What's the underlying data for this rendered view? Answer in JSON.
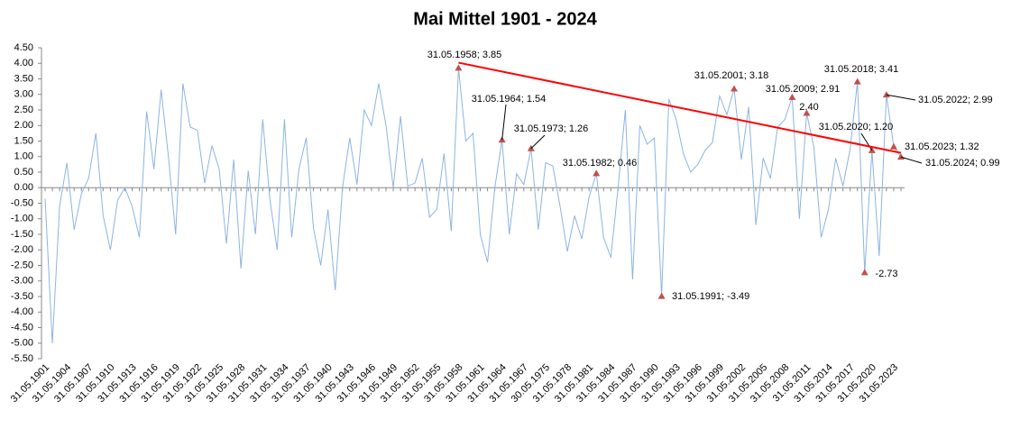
{
  "chart_data": {
    "type": "line",
    "title": "Mai Mittel 1901 - 2024",
    "categories": [
      "31.05.1901",
      null,
      null,
      "31.05.1904",
      null,
      null,
      "31.05.1907",
      null,
      null,
      "31.05.1910",
      null,
      null,
      "31.05.1913",
      null,
      null,
      "31.05.1916",
      null,
      null,
      "31.05.1919",
      null,
      null,
      "31.05.1922",
      null,
      null,
      "31.05.1925",
      null,
      null,
      "31.05.1928",
      null,
      null,
      "31.05.1931",
      null,
      null,
      "31.05.1934",
      null,
      null,
      "31.05.1937",
      null,
      null,
      "31.05.1940",
      null,
      null,
      "31.05.1943",
      null,
      null,
      "31.05.1946",
      null,
      null,
      "31.05.1949",
      null,
      null,
      "31.05.1952",
      null,
      null,
      "31.05.1955",
      null,
      null,
      "31.05.1958",
      null,
      null,
      "31.05.1961",
      null,
      null,
      "31.05.1964",
      null,
      null,
      "31.05.1967",
      null,
      null,
      "30.05.1975",
      null,
      null,
      "31.05.1978",
      null,
      null,
      "31.05.1981",
      null,
      null,
      "31.05.1984",
      null,
      null,
      "31.05.1987",
      null,
      null,
      "31.05.1990",
      null,
      null,
      "31.05.1993",
      null,
      null,
      "31.05.1996",
      null,
      null,
      "31.05.1999",
      null,
      null,
      "31.05.2002",
      null,
      null,
      "31.05.2005",
      null,
      null,
      "31.05.2008",
      null,
      null,
      "31.05.2011",
      null,
      null,
      "31.05.2014",
      null,
      null,
      "31.05.2017",
      null,
      null,
      "31.05.2020",
      null,
      null,
      "31.05.2023",
      null
    ],
    "series": [
      {
        "color": "#8db4e2",
        "marker_color": "#c0504d",
        "values": [
          -0.35,
          -5.0,
          -0.6,
          0.8,
          -1.35,
          -0.2,
          0.3,
          1.75,
          -0.9,
          -2.0,
          -0.4,
          0.0,
          -0.6,
          -1.6,
          2.45,
          0.6,
          3.15,
          1.0,
          -1.5,
          3.35,
          1.95,
          1.85,
          0.15,
          1.35,
          0.6,
          -1.8,
          0.9,
          -2.6,
          0.55,
          -1.5,
          2.2,
          -0.4,
          -2.0,
          2.2,
          -1.6,
          0.6,
          1.6,
          -1.3,
          -2.5,
          -0.7,
          -3.3,
          0.0,
          1.6,
          0.1,
          2.5,
          2.0,
          3.35,
          2.0,
          0.0,
          2.3,
          0.05,
          0.15,
          0.95,
          -0.95,
          -0.7,
          1.1,
          -1.4,
          3.85,
          1.5,
          1.75,
          -1.5,
          -2.4,
          0.0,
          1.54,
          -1.5,
          0.45,
          0.1,
          1.26,
          -1.35,
          0.8,
          0.7,
          -0.6,
          -2.05,
          -0.9,
          -1.65,
          -0.3,
          0.46,
          -1.6,
          -2.25,
          0.0,
          2.5,
          -2.95,
          2.0,
          1.4,
          1.6,
          -3.49,
          2.85,
          2.2,
          1.1,
          0.5,
          0.75,
          1.2,
          1.45,
          2.95,
          2.35,
          3.18,
          0.9,
          2.6,
          -1.2,
          0.95,
          0.3,
          1.95,
          2.2,
          2.91,
          -1.0,
          2.4,
          1.3,
          -1.6,
          -0.7,
          0.95,
          0.05,
          1.25,
          3.41,
          -2.73,
          1.2,
          -2.2,
          2.99,
          1.32,
          0.99
        ],
        "value_labels": [
          null,
          null,
          null,
          null,
          null,
          null,
          null,
          null,
          null,
          null,
          null,
          null,
          null,
          null,
          null,
          null,
          null,
          null,
          null,
          null,
          null,
          null,
          null,
          null,
          null,
          null,
          null,
          null,
          null,
          null,
          null,
          null,
          null,
          null,
          null,
          null,
          null,
          null,
          null,
          null,
          null,
          null,
          null,
          null,
          null,
          null,
          null,
          null,
          null,
          null,
          null,
          null,
          null,
          null,
          null,
          null,
          null,
          "31.05.1958; 3.85",
          null,
          null,
          null,
          null,
          null,
          "31.05.1964; 1.54",
          null,
          null,
          null,
          "31.05.1973; 1.26",
          null,
          null,
          null,
          null,
          null,
          null,
          null,
          null,
          "31.05.1982; 0.46",
          null,
          null,
          null,
          null,
          null,
          null,
          null,
          null,
          "31.05.1991; -3.49",
          null,
          null,
          null,
          null,
          null,
          null,
          null,
          null,
          null,
          "31.05.2001; 3.18",
          null,
          null,
          null,
          null,
          null,
          null,
          null,
          "31.05.2009; 2.91",
          null,
          "2.40",
          null,
          null,
          null,
          null,
          null,
          null,
          "31.05.2018; 3.41",
          "-2.73",
          "31.05.2020; 1.20",
          null,
          "31.05.2022; 2.99",
          "31.05.2023; 1.32",
          "31.05.2024; 0.99"
        ]
      },
      {
        "color": "#ff0000",
        "trend": true,
        "values": [
          null,
          null,
          null,
          null,
          null,
          null,
          null,
          null,
          null,
          null,
          null,
          null,
          null,
          null,
          null,
          null,
          null,
          null,
          null,
          null,
          null,
          null,
          null,
          null,
          null,
          null,
          null,
          null,
          null,
          null,
          null,
          null,
          null,
          null,
          null,
          null,
          null,
          null,
          null,
          null,
          null,
          null,
          null,
          null,
          null,
          null,
          null,
          null,
          null,
          null,
          null,
          null,
          null,
          null,
          null,
          null,
          null,
          4.02,
          null,
          null,
          null,
          null,
          null,
          null,
          null,
          null,
          null,
          null,
          null,
          null,
          null,
          null,
          null,
          null,
          null,
          null,
          null,
          null,
          null,
          null,
          null,
          null,
          null,
          null,
          null,
          null,
          null,
          null,
          null,
          null,
          null,
          null,
          null,
          null,
          null,
          null,
          null,
          null,
          null,
          null,
          null,
          null,
          null,
          null,
          null,
          null,
          null,
          null,
          null,
          null,
          null,
          null,
          null,
          null,
          null,
          null,
          null,
          null,
          1.12
        ]
      }
    ],
    "ylim": [
      -5.5,
      4.5
    ],
    "yticks": [
      {
        "value": 4.5,
        "label": "4.50"
      },
      {
        "value": 4,
        "label": "4.00"
      },
      {
        "value": 3.5,
        "label": "3.50"
      },
      {
        "value": 3,
        "label": "3.00"
      },
      {
        "value": 2.5,
        "label": "2.50"
      },
      {
        "value": 2,
        "label": "2.00"
      },
      {
        "value": 1.5,
        "label": "1.50"
      },
      {
        "value": 1,
        "label": "1.00"
      },
      {
        "value": 0.5,
        "label": "0.50"
      },
      {
        "value": 0,
        "label": "0.00"
      },
      {
        "value": -0.5,
        "label": "-0.50"
      },
      {
        "value": -1,
        "label": "-1.00"
      },
      {
        "value": -1.5,
        "label": "-1.50"
      },
      {
        "value": -2,
        "label": "-2.00"
      },
      {
        "value": -2.5,
        "label": "-2.50"
      },
      {
        "value": -3,
        "label": "-3.00"
      },
      {
        "value": -3.5,
        "label": "-3.50"
      },
      {
        "value": -4,
        "label": "-4.00"
      },
      {
        "value": -4.5,
        "label": "-4.50"
      },
      {
        "value": -5,
        "label": "-5.00"
      },
      {
        "value": -5.5,
        "label": "-5.50"
      }
    ],
    "grid": false
  }
}
